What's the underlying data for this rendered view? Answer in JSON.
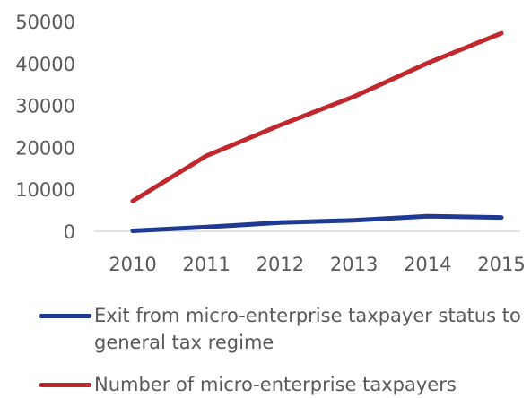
{
  "chart_data": {
    "type": "line",
    "title": "",
    "xlabel": "",
    "ylabel": "",
    "x": [
      "2010",
      "2011",
      "2012",
      "2013",
      "2014",
      "2015"
    ],
    "ylim": [
      0,
      50000
    ],
    "yticks": [
      0,
      10000,
      20000,
      30000,
      40000,
      50000
    ],
    "ytick_labels": [
      "0",
      "10000",
      "20000",
      "30000",
      "40000",
      "50000"
    ],
    "grid": false,
    "legend_position": "bottom",
    "series": [
      {
        "name": "Exit from micro-enterprise taxpayer status to general tax regime",
        "values": [
          100,
          1000,
          2100,
          2600,
          3600,
          3300
        ],
        "color": "#1f3a93"
      },
      {
        "name": "Number of micro-enterprise taxpayers",
        "values": [
          7200,
          18000,
          25300,
          32100,
          40100,
          47200
        ],
        "color": "#c0282d"
      }
    ]
  }
}
